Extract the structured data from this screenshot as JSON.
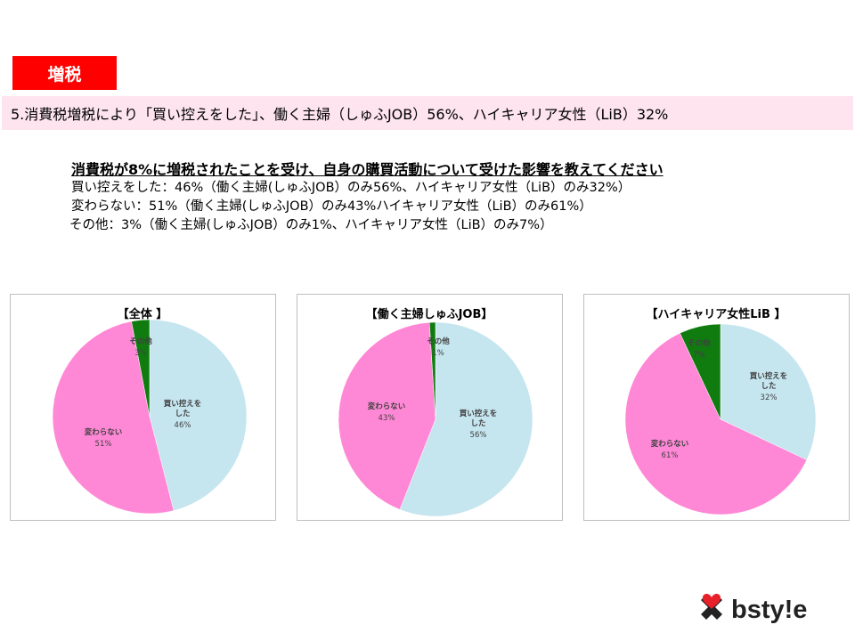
{
  "tag": {
    "label": "増税",
    "color": "#ff0000"
  },
  "headline": {
    "text": "5.消費税増税により「買い控えをした」、働く主婦（しゅふJOB）56%、ハイキャリア女性（LiB）32%"
  },
  "question": {
    "title": "消費税が8%に増税されたことを受け、自身の購買活動について受けた影響を教えてください",
    "lines": [
      "買い控えをした：46%（働く主婦(しゅふJOB）のみ56%、ハイキャリア女性（LiB）のみ32%）",
      "変わらない：51%（働く主婦(しゅふJOB）のみ43%ハイキャリア女性（LiB）のみ61%）",
      "その他：3%（働く主婦(しゅふJOB）のみ1%、ハイキャリア女性（LiB）のみ7%）"
    ]
  },
  "colors": {
    "buy_less": "#c5e5ef",
    "no_change": "#ff88d6",
    "other": "#107c10"
  },
  "chart_data": [
    {
      "type": "pie",
      "title": "【全体 】",
      "slices": [
        {
          "label": "買い控えをした",
          "value": 46,
          "pct_label": "46%",
          "color": "#c5e5ef"
        },
        {
          "label": "変わらない",
          "value": 51,
          "pct_label": "51%",
          "color": "#ff88d6"
        },
        {
          "label": "その他",
          "value": 3,
          "pct_label": "3%",
          "color": "#107c10"
        }
      ]
    },
    {
      "type": "pie",
      "title": "【働く主婦しゅふJOB】",
      "slices": [
        {
          "label": "買い控えをした",
          "value": 56,
          "pct_label": "56%",
          "color": "#c5e5ef"
        },
        {
          "label": "変わらない",
          "value": 43,
          "pct_label": "43%",
          "color": "#ff88d6"
        },
        {
          "label": "その他",
          "value": 1,
          "pct_label": "1%",
          "color": "#107c10"
        }
      ]
    },
    {
      "type": "pie",
      "title": "【ハイキャリア女性LiB 】",
      "slices": [
        {
          "label": "買い控えをした",
          "value": 32,
          "pct_label": "32%",
          "color": "#c5e5ef"
        },
        {
          "label": "変わらない",
          "value": 61,
          "pct_label": "61%",
          "color": "#ff88d6"
        },
        {
          "label": "その他",
          "value": 7,
          "pct_label": "7%",
          "color": "#107c10"
        }
      ]
    }
  ],
  "logo": {
    "text": "bsty!e",
    "icon": "heart-x-icon",
    "heart_color": "#e8202a",
    "cross_color": "#222222"
  }
}
